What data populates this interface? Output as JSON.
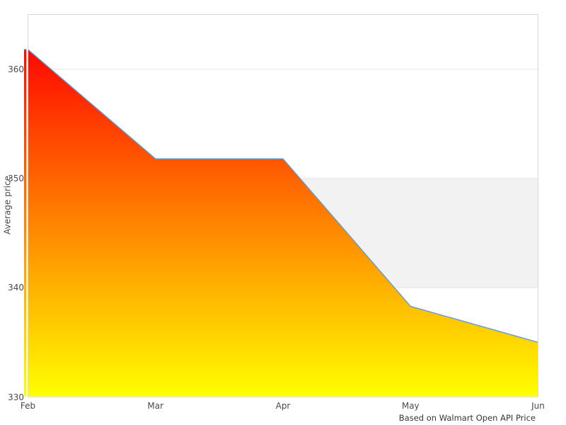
{
  "chart_data": {
    "type": "area",
    "title": "",
    "categories": [
      "Feb",
      "Mar",
      "Apr",
      "May",
      "Jun"
    ],
    "values": [
      361.8,
      351.8,
      351.8,
      338.3,
      335.0
    ],
    "series_name": "Average price",
    "xlabel": "",
    "ylabel": "Average price",
    "ylim": [
      330,
      365
    ],
    "yticks": [
      330,
      340,
      350,
      360
    ],
    "gridlines": [
      340,
      350,
      360
    ],
    "band": {
      "from": 340,
      "to": 350
    },
    "grid": "horizontal only",
    "legend_position": "none",
    "caption": "Based on Walmart Open API Price",
    "colors": {
      "gradient_top": "#ff0800",
      "gradient_bottom": "#ffff00",
      "line": "#6699cc",
      "band": "#f2f2f2",
      "grid": "#e6e6e6",
      "border": "#d8d8d8",
      "tick_text": "#4a4a4a",
      "caption_text": "#363636",
      "background": "#ffffff"
    }
  }
}
